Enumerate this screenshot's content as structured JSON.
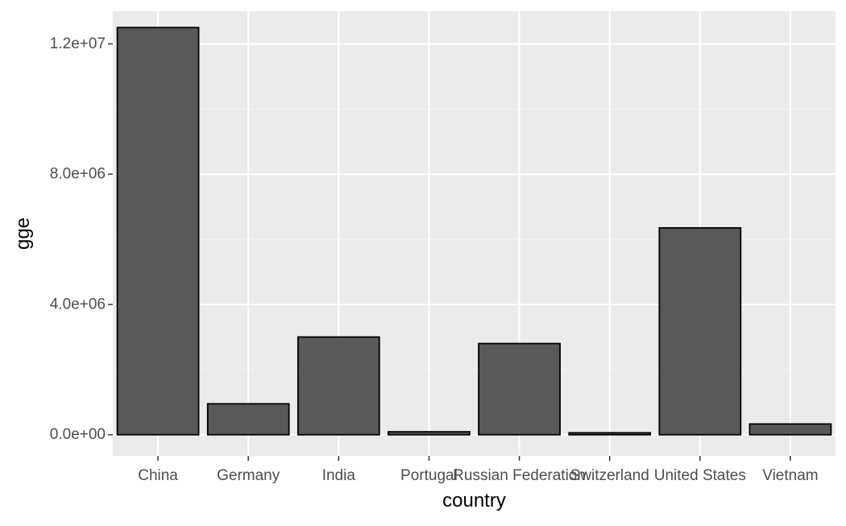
{
  "chart_data": {
    "type": "bar",
    "title": "",
    "xlabel": "country",
    "ylabel": "gge",
    "categories": [
      "China",
      "Germany",
      "India",
      "Portugal",
      "Russian Federation",
      "Switzerland",
      "United States",
      "Vietnam"
    ],
    "values": [
      12500000,
      950000,
      3000000,
      90000,
      2800000,
      60000,
      6350000,
      330000
    ],
    "ylim": [
      -650000,
      13000000
    ],
    "y_ticks": [
      0,
      4000000,
      8000000,
      12000000
    ],
    "y_tick_labels": [
      "0.0e+00",
      "4.0e+06",
      "8.0e+06",
      "1.2e+07"
    ],
    "y_minor_ticks": [
      2000000,
      6000000,
      10000000
    ],
    "grid": true,
    "legend": "none",
    "colors": {
      "panel_background": "#ebebeb",
      "grid_major": "#ffffff",
      "grid_minor": "#f5f5f5",
      "bar_fill": "#595959",
      "bar_outline": "#000000",
      "axis_text": "#4d4d4d",
      "axis_title": "#000000",
      "tick": "#333333"
    }
  }
}
